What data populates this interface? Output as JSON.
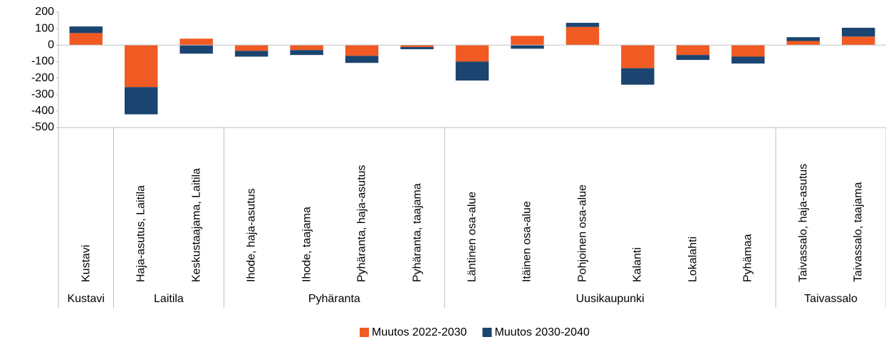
{
  "chart_data": {
    "type": "stacked_bar",
    "groups": [
      {
        "name": "Kustavi",
        "categories": [
          "Kustavi"
        ]
      },
      {
        "name": "Laitila",
        "categories": [
          "Haja-asutus, Laitila",
          "Keskustaajama, Laitila"
        ]
      },
      {
        "name": "Pyhäranta",
        "categories": [
          "Ihode, haja-asutus",
          "Ihode, taajama",
          "Pyhäranta, haja-asutus",
          "Pyhäranta, taajama"
        ]
      },
      {
        "name": "Uusikaupunki",
        "categories": [
          "Läntinen osa-alue",
          "Itäinen osa-alue",
          "Pohjoinen osa-alue",
          "Kalanti",
          "Lokalahti",
          "Pyhämaa"
        ]
      },
      {
        "name": "Taivassalo",
        "categories": [
          "Taivassalo, haja-asutus",
          "Taivassalo, taajama"
        ]
      }
    ],
    "series": [
      {
        "name": "Muutos 2022-2030",
        "color": "#f15a22",
        "values": [
          73,
          -255,
          39,
          -35,
          -30,
          -65,
          -12,
          -100,
          56,
          110,
          -140,
          -60,
          -70,
          25,
          52
        ]
      },
      {
        "name": "Muutos 2030-2040",
        "color": "#1b4570",
        "values": [
          40,
          -165,
          -52,
          -35,
          -30,
          -43,
          -13,
          -115,
          -22,
          25,
          -100,
          -30,
          -42,
          23,
          53
        ]
      }
    ],
    "ylim": [
      -500,
      200
    ],
    "yticks": [
      200,
      100,
      0,
      -100,
      -200,
      -300,
      -400,
      -500
    ],
    "legend": "bottom"
  }
}
